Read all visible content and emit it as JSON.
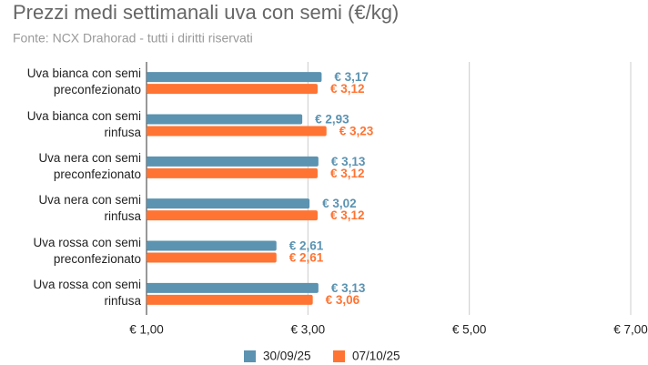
{
  "chart_data": {
    "type": "hbar",
    "title": "Prezzi medi settimanali uva con semi (€/kg)",
    "subtitle": "Fonte: NCX Drahorad - tutti i diritti riservati",
    "categories": [
      "Uva bianca con semi\npreconfezionato",
      "Uva bianca con semi\nrinfusa",
      "Uva nera con semi\npreconfezionato",
      "Uva nera con semi\nrinfusa",
      "Uva rossa con semi\npreconfezionato",
      "Uva rossa con semi\nrinfusa"
    ],
    "series": [
      {
        "name": "30/09/25",
        "color": "#5b93b1",
        "values": [
          3.17,
          2.93,
          3.13,
          3.02,
          2.61,
          3.13
        ],
        "value_labels": [
          "€ 3,17",
          "€ 2,93",
          "€ 3,13",
          "€ 3,02",
          "€ 2,61",
          "€ 3,13"
        ]
      },
      {
        "name": "07/10/25",
        "color": "#ff7433",
        "values": [
          3.12,
          3.23,
          3.12,
          3.12,
          2.61,
          3.06
        ],
        "value_labels": [
          "€ 3,12",
          "€ 3,23",
          "€ 3,12",
          "€ 3,12",
          "€ 2,61",
          "€ 3,06"
        ]
      }
    ],
    "xlim": [
      1,
      7
    ],
    "xticks": [
      {
        "value": 1,
        "label": "€ 1,00"
      },
      {
        "value": 3,
        "label": "€ 3,00"
      },
      {
        "value": 5,
        "label": "€ 5,00"
      },
      {
        "value": 7,
        "label": "€ 7,00"
      }
    ],
    "grid": true,
    "legend": "bottom"
  }
}
